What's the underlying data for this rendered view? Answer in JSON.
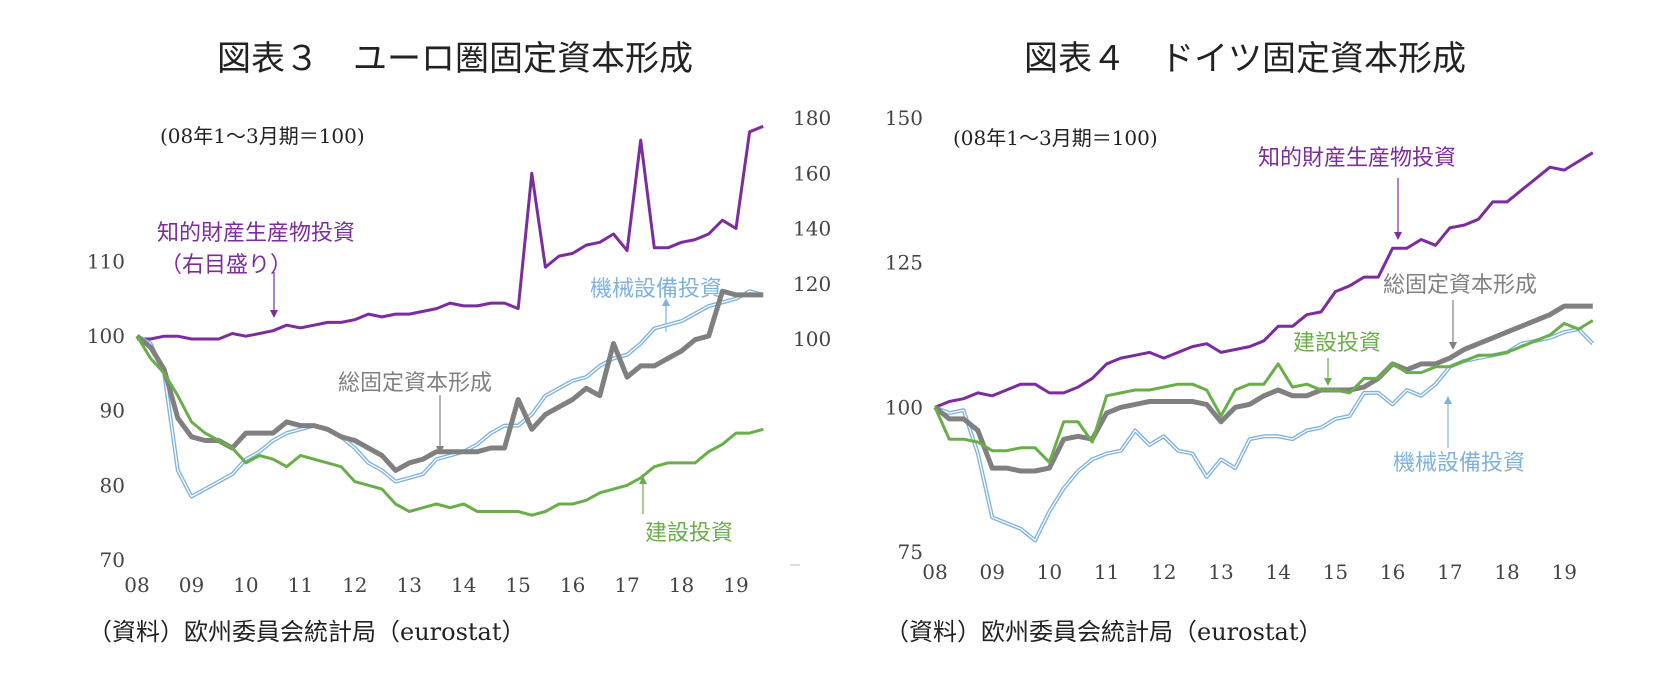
{
  "chart_data": [
    {
      "type": "line",
      "title": "図表３　ユーロ圏固定資本形成",
      "note": "(08年1～3月期＝100)",
      "source": "（資料）欧州委員会統計局（eurostat）",
      "x_tick_labels": [
        "08",
        "09",
        "10",
        "11",
        "12",
        "13",
        "14",
        "15",
        "16",
        "17",
        "18",
        "19"
      ],
      "x_range": [
        2008.0,
        2019.625
      ],
      "y_left_ticks": [
        70,
        80,
        90,
        100,
        110
      ],
      "y_left_range": [
        70,
        110
      ],
      "y_right_ticks": [
        100,
        120,
        140,
        160,
        180
      ],
      "y_right_range": [
        100,
        180
      ],
      "right_axis_range": [
        20,
        180
      ],
      "series": [
        {
          "name": "知的財産生産物投資",
          "name_line2": "（右目盛り）",
          "axis": "right",
          "color": "#7b2d9e",
          "x": [
            2008.0,
            2008.25,
            2008.5,
            2008.75,
            2009.0,
            2009.25,
            2009.5,
            2009.75,
            2010.0,
            2010.25,
            2010.5,
            2010.75,
            2011.0,
            2011.25,
            2011.5,
            2011.75,
            2012.0,
            2012.25,
            2012.5,
            2012.75,
            2013.0,
            2013.25,
            2013.5,
            2013.75,
            2014.0,
            2014.25,
            2014.5,
            2014.75,
            2015.0,
            2015.25,
            2015.5,
            2015.75,
            2016.0,
            2016.25,
            2016.5,
            2016.75,
            2017.0,
            2017.25,
            2017.5,
            2017.75,
            2018.0,
            2018.25,
            2018.5,
            2018.75,
            2019.0,
            2019.25,
            2019.5
          ],
          "values": [
            100,
            100,
            101,
            101,
            100,
            100,
            100,
            102,
            101,
            102,
            103,
            105,
            104,
            105,
            106,
            106,
            107,
            109,
            108,
            109,
            109,
            110,
            111,
            113,
            112,
            112,
            113,
            113,
            111,
            160,
            126,
            130,
            131,
            134,
            135,
            138,
            132,
            172,
            133,
            133,
            135,
            136,
            138,
            143,
            140,
            175,
            177
          ]
        },
        {
          "name": "機械設備投資",
          "axis": "left",
          "color": "#7fb2de",
          "x": [
            2008.0,
            2008.25,
            2008.5,
            2008.75,
            2009.0,
            2009.25,
            2009.5,
            2009.75,
            2010.0,
            2010.25,
            2010.5,
            2010.75,
            2011.0,
            2011.25,
            2011.5,
            2011.75,
            2012.0,
            2012.25,
            2012.5,
            2012.75,
            2013.0,
            2013.25,
            2013.5,
            2013.75,
            2014.0,
            2014.25,
            2014.5,
            2014.75,
            2015.0,
            2015.25,
            2015.5,
            2015.75,
            2016.0,
            2016.25,
            2016.5,
            2016.75,
            2017.0,
            2017.25,
            2017.5,
            2017.75,
            2018.0,
            2018.25,
            2018.5,
            2018.75,
            2019.0,
            2019.25,
            2019.5
          ],
          "values": [
            100,
            99,
            95,
            82,
            78.5,
            79.5,
            80.5,
            81.5,
            83.5,
            84.5,
            86,
            87,
            87.5,
            88,
            87.5,
            86.5,
            85,
            83,
            82,
            80.5,
            81,
            81.5,
            83.5,
            84,
            84.5,
            85.5,
            87,
            88,
            88,
            89.5,
            92,
            93,
            94,
            94.5,
            96,
            97,
            97.5,
            99,
            101,
            101.5,
            102,
            103,
            104,
            104.5,
            105,
            106,
            105.5
          ]
        },
        {
          "name": "総固定資本形成",
          "axis": "left",
          "color": "#808080",
          "x": [
            2008.0,
            2008.25,
            2008.5,
            2008.75,
            2009.0,
            2009.25,
            2009.5,
            2009.75,
            2010.0,
            2010.25,
            2010.5,
            2010.75,
            2011.0,
            2011.25,
            2011.5,
            2011.75,
            2012.0,
            2012.25,
            2012.5,
            2012.75,
            2013.0,
            2013.25,
            2013.5,
            2013.75,
            2014.0,
            2014.25,
            2014.5,
            2014.75,
            2015.0,
            2015.25,
            2015.5,
            2015.75,
            2016.0,
            2016.25,
            2016.5,
            2016.75,
            2017.0,
            2017.25,
            2017.5,
            2017.75,
            2018.0,
            2018.25,
            2018.5,
            2018.75,
            2019.0,
            2019.25,
            2019.5
          ],
          "values": [
            100,
            98.5,
            95.5,
            89,
            86.5,
            86,
            86,
            85,
            87,
            87,
            87,
            88.5,
            88,
            88,
            87.5,
            86.5,
            86,
            85,
            84,
            82,
            83,
            83.5,
            84.5,
            84.5,
            84.5,
            84.5,
            85,
            85,
            91.5,
            87.5,
            89.5,
            90.5,
            91.5,
            93,
            92,
            99,
            94.5,
            96,
            96,
            97,
            98,
            99.5,
            100,
            106,
            105.5,
            105.5,
            105.5
          ]
        },
        {
          "name": "建設投資",
          "axis": "left",
          "color": "#6aae4a",
          "x": [
            2008.0,
            2008.25,
            2008.5,
            2008.75,
            2009.0,
            2009.25,
            2009.5,
            2009.75,
            2010.0,
            2010.25,
            2010.5,
            2010.75,
            2011.0,
            2011.25,
            2011.5,
            2011.75,
            2012.0,
            2012.25,
            2012.5,
            2012.75,
            2013.0,
            2013.25,
            2013.5,
            2013.75,
            2014.0,
            2014.25,
            2014.5,
            2014.75,
            2015.0,
            2015.25,
            2015.5,
            2015.75,
            2016.0,
            2016.25,
            2016.5,
            2016.75,
            2017.0,
            2017.25,
            2017.5,
            2017.75,
            2018.0,
            2018.25,
            2018.5,
            2018.75,
            2019.0,
            2019.25,
            2019.5
          ],
          "values": [
            100,
            97,
            95,
            92,
            88.5,
            87,
            86,
            85,
            83,
            84,
            83.5,
            82.5,
            84,
            83.5,
            83,
            82.5,
            80.5,
            80,
            79.5,
            77.5,
            76.5,
            77,
            77.5,
            77,
            77.5,
            76.5,
            76.5,
            76.5,
            76.5,
            76,
            76.5,
            77.5,
            77.5,
            78,
            79,
            79.5,
            80,
            81,
            82.5,
            83,
            83,
            83,
            84.5,
            85.5,
            87,
            87,
            87.5
          ]
        }
      ],
      "labels": {
        "ip_line1": "知的財産生産物投資",
        "ip_line2": "（右目盛り）",
        "machinery": "機械設備投資",
        "total": "総固定資本形成",
        "construction": "建設投資"
      }
    },
    {
      "type": "line",
      "title": "図表４　ドイツ固定資本形成",
      "note": "(08年1～3月期＝100)",
      "source": "（資料）欧州委員会統計局（eurostat）",
      "x_tick_labels": [
        "08",
        "09",
        "10",
        "11",
        "12",
        "13",
        "14",
        "15",
        "16",
        "17",
        "18",
        "19"
      ],
      "x_range": [
        2008.0,
        2019.625
      ],
      "y_ticks": [
        75,
        100,
        125,
        150
      ],
      "y_range": [
        75,
        150
      ],
      "series": [
        {
          "name": "知的財産生産物投資",
          "color": "#7b2d9e",
          "x": [
            2008.0,
            2008.25,
            2008.5,
            2008.75,
            2009.0,
            2009.25,
            2009.5,
            2009.75,
            2010.0,
            2010.25,
            2010.5,
            2010.75,
            2011.0,
            2011.25,
            2011.5,
            2011.75,
            2012.0,
            2012.25,
            2012.5,
            2012.75,
            2013.0,
            2013.25,
            2013.5,
            2013.75,
            2014.0,
            2014.25,
            2014.5,
            2014.75,
            2015.0,
            2015.25,
            2015.5,
            2015.75,
            2016.0,
            2016.25,
            2016.5,
            2016.75,
            2017.0,
            2017.25,
            2017.5,
            2017.75,
            2018.0,
            2018.25,
            2018.5,
            2018.75,
            2019.0,
            2019.25,
            2019.5
          ],
          "values": [
            100,
            101,
            101.5,
            102.5,
            102,
            103,
            104,
            104,
            102.5,
            102.5,
            103.5,
            105,
            107.5,
            108.5,
            109,
            109.5,
            108.5,
            109.5,
            110.5,
            111,
            109.5,
            110,
            110.5,
            111.5,
            114,
            114,
            116,
            116.5,
            120,
            121,
            122.5,
            122.5,
            127.5,
            127.5,
            129,
            128,
            131,
            131.5,
            132.5,
            135.5,
            135.5,
            137.5,
            139.5,
            141.5,
            141,
            142.5,
            144
          ]
        },
        {
          "name": "機械設備投資",
          "color": "#7fb2de",
          "x": [
            2008.0,
            2008.25,
            2008.5,
            2008.75,
            2009.0,
            2009.25,
            2009.5,
            2009.75,
            2010.0,
            2010.25,
            2010.5,
            2010.75,
            2011.0,
            2011.25,
            2011.5,
            2011.75,
            2012.0,
            2012.25,
            2012.5,
            2012.75,
            2013.0,
            2013.25,
            2013.5,
            2013.75,
            2014.0,
            2014.25,
            2014.5,
            2014.75,
            2015.0,
            2015.25,
            2015.5,
            2015.75,
            2016.0,
            2016.25,
            2016.5,
            2016.75,
            2017.0,
            2017.25,
            2017.5,
            2017.75,
            2018.0,
            2018.25,
            2018.5,
            2018.75,
            2019.0,
            2019.25,
            2019.5
          ],
          "values": [
            100,
            99,
            99.5,
            92,
            81,
            80,
            79,
            77,
            82,
            86,
            89,
            91,
            92,
            92.5,
            96,
            93.5,
            95,
            92.5,
            92,
            88,
            91,
            89.5,
            94.5,
            95,
            95,
            94.5,
            96,
            96.5,
            98,
            98.5,
            102.5,
            102.5,
            100.5,
            103,
            102,
            104,
            107,
            108,
            108.5,
            109,
            109.5,
            111,
            111.5,
            112,
            113,
            113.5,
            111
          ]
        },
        {
          "name": "総固定資本形成",
          "color": "#808080",
          "x": [
            2008.0,
            2008.25,
            2008.5,
            2008.75,
            2009.0,
            2009.25,
            2009.5,
            2009.75,
            2010.0,
            2010.25,
            2010.5,
            2010.75,
            2011.0,
            2011.25,
            2011.5,
            2011.75,
            2012.0,
            2012.25,
            2012.5,
            2012.75,
            2013.0,
            2013.25,
            2013.5,
            2013.75,
            2014.0,
            2014.25,
            2014.5,
            2014.75,
            2015.0,
            2015.25,
            2015.5,
            2015.75,
            2016.0,
            2016.25,
            2016.5,
            2016.75,
            2017.0,
            2017.25,
            2017.5,
            2017.75,
            2018.0,
            2018.25,
            2018.5,
            2018.75,
            2019.0,
            2019.25,
            2019.5
          ],
          "values": [
            100,
            98,
            98,
            96,
            89.5,
            89.5,
            89,
            89,
            89.5,
            94.5,
            95,
            94.5,
            99,
            100,
            100.5,
            101,
            101,
            101,
            101,
            100.5,
            97.5,
            100,
            100.5,
            102,
            103,
            102,
            102,
            103,
            103,
            103,
            103.5,
            105,
            107.5,
            106.5,
            107.5,
            107.5,
            108.5,
            110,
            111,
            112,
            113,
            114,
            115,
            116,
            117.5,
            117.5,
            117.5
          ]
        },
        {
          "name": "建設投資",
          "color": "#6aae4a",
          "x": [
            2008.0,
            2008.25,
            2008.5,
            2008.75,
            2009.0,
            2009.25,
            2009.5,
            2009.75,
            2010.0,
            2010.25,
            2010.5,
            2010.75,
            2011.0,
            2011.25,
            2011.5,
            2011.75,
            2012.0,
            2012.25,
            2012.5,
            2012.75,
            2013.0,
            2013.25,
            2013.5,
            2013.75,
            2014.0,
            2014.25,
            2014.5,
            2014.75,
            2015.0,
            2015.25,
            2015.5,
            2015.75,
            2016.0,
            2016.25,
            2016.5,
            2016.75,
            2017.0,
            2017.25,
            2017.5,
            2017.75,
            2018.0,
            2018.25,
            2018.5,
            2018.75,
            2019.0,
            2019.25,
            2019.5
          ],
          "values": [
            100,
            94.5,
            94.5,
            94,
            92.5,
            92.5,
            93,
            93,
            90.5,
            97.5,
            97.5,
            94,
            102,
            102.5,
            103,
            103,
            103.5,
            104,
            104,
            103,
            98.5,
            103,
            104,
            104,
            107.5,
            103.5,
            104,
            103,
            103,
            102.5,
            105,
            105,
            107.5,
            106,
            106,
            107,
            107,
            108,
            109,
            109,
            109.5,
            110.5,
            111.5,
            112.5,
            114.5,
            113.5,
            115
          ]
        }
      ],
      "labels": {
        "ip": "知的財産生産物投資",
        "total": "総固定資本形成",
        "construction": "建設投資",
        "machinery": "機械設備投資"
      }
    }
  ]
}
